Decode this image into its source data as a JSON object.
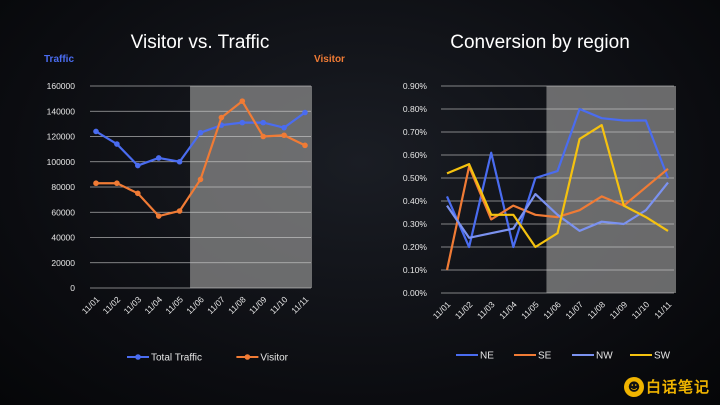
{
  "logo": {
    "text": "白话笔记",
    "icon": "lightbulb-icon"
  },
  "colors": {
    "blue": "#4a6cf0",
    "orange": "#f07b35",
    "lightblue": "#7b92f0",
    "yellow": "#f5c20f",
    "highlight": "#8a8a8a",
    "grid": "#d0d0d0"
  },
  "chart_data": [
    {
      "type": "line",
      "title": "Visitor vs. Traffic",
      "left_axis_label": "Traffic",
      "right_axis_label": "Visitor",
      "categories": [
        "11/01",
        "11/02",
        "11/03",
        "11/04",
        "11/05",
        "11/06",
        "11/07",
        "11/08",
        "11/09",
        "11/10",
        "11/11"
      ],
      "ylim": [
        0,
        160000
      ],
      "yticks": [
        "0",
        "20000",
        "40000",
        "60000",
        "80000",
        "100000",
        "120000",
        "140000",
        "160000"
      ],
      "highlight_range": [
        "11/06",
        "11/11"
      ],
      "grid": true,
      "legend_position": "bottom",
      "series": [
        {
          "name": "Total Traffic",
          "color": "#4a6cf0",
          "values": [
            124000,
            114000,
            97000,
            103000,
            100000,
            123000,
            129000,
            131000,
            131000,
            127000,
            139000
          ]
        },
        {
          "name": "Visitor",
          "color": "#f07b35",
          "values": [
            83000,
            83000,
            75000,
            57000,
            61000,
            86000,
            135000,
            148000,
            120000,
            121000,
            113000
          ]
        }
      ]
    },
    {
      "type": "line",
      "title": "Conversion by region",
      "categories": [
        "11/01",
        "11/02",
        "11/03",
        "11/04",
        "11/05",
        "11/06",
        "11/07",
        "11/08",
        "11/09",
        "11/10",
        "11/11"
      ],
      "ylim": [
        0,
        0.9
      ],
      "yticks": [
        "0.00%",
        "0.10%",
        "0.20%",
        "0.30%",
        "0.40%",
        "0.50%",
        "0.60%",
        "0.70%",
        "0.80%",
        "0.90%"
      ],
      "highlight_range": [
        "11/06",
        "11/11"
      ],
      "grid": true,
      "legend_position": "bottom",
      "series": [
        {
          "name": "NE",
          "color": "#4a6cf0",
          "values": [
            0.42,
            0.2,
            0.61,
            0.2,
            0.5,
            0.53,
            0.8,
            0.76,
            0.75,
            0.75,
            0.5
          ]
        },
        {
          "name": "SE",
          "color": "#f07b35",
          "values": [
            0.1,
            0.55,
            0.32,
            0.38,
            0.34,
            0.33,
            0.36,
            0.42,
            0.38,
            0.46,
            0.54
          ]
        },
        {
          "name": "NW",
          "color": "#7b92f0",
          "values": [
            0.38,
            0.24,
            0.26,
            0.28,
            0.43,
            0.34,
            0.27,
            0.31,
            0.3,
            0.36,
            0.48
          ]
        },
        {
          "name": "SW",
          "color": "#f5c20f",
          "values": [
            0.52,
            0.56,
            0.34,
            0.34,
            0.2,
            0.26,
            0.67,
            0.73,
            0.38,
            0.33,
            0.27
          ]
        }
      ]
    }
  ]
}
